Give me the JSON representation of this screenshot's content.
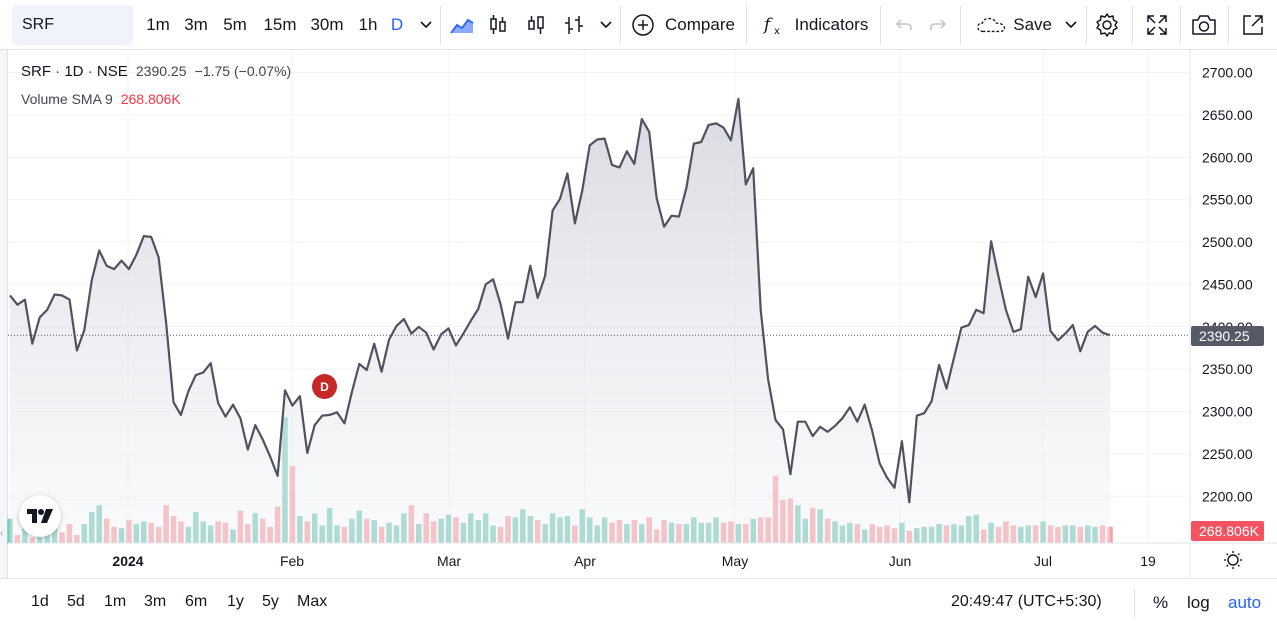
{
  "toolbar": {
    "symbol": "SRF",
    "intervals": [
      "1m",
      "3m",
      "5m",
      "15m",
      "30m",
      "1h",
      "D"
    ],
    "active_interval": "D",
    "compare_label": "Compare",
    "indicators_label": "Indicators",
    "save_label": "Save"
  },
  "legend": {
    "symbol": "SRF",
    "interval": "1D",
    "exchange": "NSE",
    "separator": "·",
    "price": "2390.25",
    "change": "−1.75 (−0.07%)",
    "volume_label": "Volume SMA 9",
    "volume_value": "268.806K"
  },
  "dividend_badge": "D",
  "price_axis": {
    "ticks": [
      "2700.00",
      "2650.00",
      "2600.00",
      "2550.00",
      "2500.00",
      "2450.00",
      "2400.00",
      "2350.00",
      "2300.00",
      "2250.00",
      "2200.00"
    ],
    "last_price_label": "2390.25",
    "volume_label": "268.806K"
  },
  "time_axis": {
    "labels": [
      "2024",
      "Feb",
      "Mar",
      "Apr",
      "May",
      "Jun",
      "Jul",
      "19"
    ]
  },
  "bottombar": {
    "ranges": [
      "1d",
      "5d",
      "1m",
      "3m",
      "6m",
      "1y",
      "5y",
      "Max"
    ],
    "clock": "20:49:47 (UTC+5:30)",
    "percent": "%",
    "log": "log",
    "auto": "auto"
  },
  "colors": {
    "line": "#50535e",
    "area_top": "#d1d4dc",
    "up_volume": "#7ecbbd",
    "down_volume": "#f5a3a7",
    "accent": "#2962ff",
    "dividend": "#c62828"
  },
  "chart_data": {
    "type": "area",
    "title": "SRF · 1D · NSE",
    "ylim": [
      2160,
      2720
    ],
    "ticks_y": [
      2200,
      2250,
      2300,
      2350,
      2400,
      2450,
      2500,
      2550,
      2600,
      2650,
      2700
    ],
    "series": [
      {
        "name": "SRF",
        "values": [
          2437,
          2426,
          2432,
          2380,
          2411,
          2420,
          2438,
          2437,
          2432,
          2372,
          2396,
          2455,
          2490,
          2472,
          2468,
          2478,
          2468,
          2485,
          2507,
          2506,
          2482,
          2405,
          2311,
          2296,
          2324,
          2343,
          2346,
          2357,
          2310,
          2294,
          2308,
          2292,
          2255,
          2284,
          2267,
          2247,
          2224,
          2325,
          2307,
          2318,
          2251,
          2284,
          2295,
          2296,
          2299,
          2286,
          2323,
          2356,
          2349,
          2380,
          2347,
          2385,
          2401,
          2409,
          2392,
          2400,
          2393,
          2373,
          2391,
          2398,
          2378,
          2392,
          2407,
          2421,
          2450,
          2456,
          2427,
          2386,
          2429,
          2429,
          2472,
          2434,
          2460,
          2537,
          2551,
          2581,
          2522,
          2561,
          2614,
          2621,
          2622,
          2591,
          2588,
          2607,
          2592,
          2645,
          2630,
          2552,
          2518,
          2531,
          2530,
          2564,
          2616,
          2618,
          2638,
          2640,
          2635,
          2620,
          2669,
          2568,
          2587,
          2420,
          2338,
          2290,
          2279,
          2226,
          2288,
          2288,
          2271,
          2282,
          2276,
          2283,
          2292,
          2305,
          2288,
          2308,
          2277,
          2239,
          2222,
          2210,
          2265,
          2193,
          2295,
          2298,
          2312,
          2355,
          2327,
          2363,
          2399,
          2402,
          2420,
          2416,
          2501,
          2459,
          2420,
          2394,
          2397,
          2459,
          2435,
          2463,
          2395,
          2384,
          2392,
          2402,
          2371,
          2394,
          2401,
          2393,
          2390
        ]
      },
      {
        "name": "Volume",
        "values": [
          180,
          60,
          150,
          40,
          150,
          70,
          180,
          80,
          140,
          60,
          140,
          230,
          280,
          180,
          120,
          110,
          170,
          140,
          160,
          150,
          120,
          280,
          200,
          160,
          120,
          230,
          160,
          130,
          160,
          150,
          100,
          240,
          140,
          220,
          180,
          120,
          270,
          930,
          570,
          200,
          160,
          220,
          130,
          260,
          130,
          120,
          180,
          240,
          180,
          170,
          120,
          150,
          130,
          220,
          280,
          140,
          220,
          160,
          180,
          210,
          190,
          150,
          220,
          170,
          220,
          130,
          120,
          200,
          190,
          250,
          200,
          170,
          140,
          220,
          190,
          200,
          130,
          250,
          190,
          130,
          190,
          150,
          170,
          140,
          170,
          140,
          190,
          100,
          170,
          150,
          140,
          140,
          190,
          150,
          150,
          190,
          150,
          160,
          140,
          140,
          180,
          190,
          190,
          500,
          320,
          330,
          280,
          180,
          260,
          250,
          180,
          160,
          130,
          150,
          140,
          100,
          140,
          120,
          130,
          110,
          150,
          90,
          110,
          120,
          120,
          140,
          130,
          140,
          130,
          200,
          210,
          100,
          150,
          120,
          160,
          130,
          120,
          130,
          130,
          160,
          130,
          120,
          130,
          130,
          120,
          130,
          120,
          130,
          120
        ]
      }
    ],
    "x_labels": [
      "2024",
      "Feb",
      "Mar",
      "Apr",
      "May",
      "Jun",
      "Jul",
      "19"
    ]
  }
}
